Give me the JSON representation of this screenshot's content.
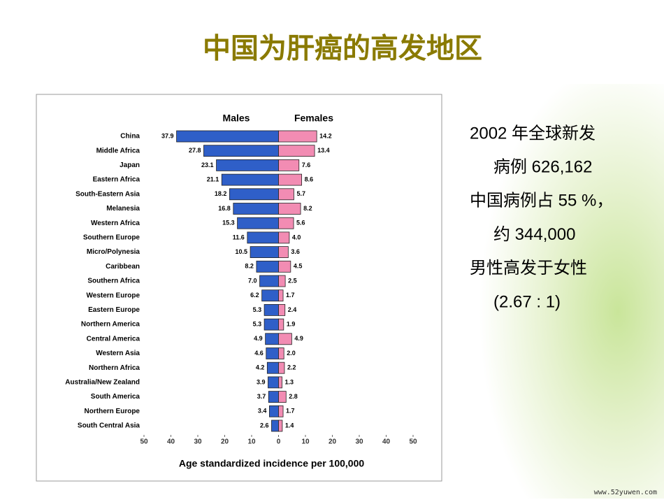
{
  "slide": {
    "title": "中国为肝癌的高发地区",
    "notes": [
      "2002 年全球新发",
      "病例   626,162",
      "中国病例占 55 %，",
      "约 344,000",
      "男性高发于女性",
      "(2.67 : 1)"
    ],
    "watermark": "www.52yuwen.com"
  },
  "chart_data": {
    "type": "pyramid",
    "xlabel": "Age standardized incidence per 100,000",
    "categories": [
      "China",
      "Middle Africa",
      "Japan",
      "Eastern Africa",
      "South-Eastern Asia",
      "Melanesia",
      "Western Africa",
      "Southern Europe",
      "Micro/Polynesia",
      "Caribbean",
      "Southern Africa",
      "Western Europe",
      "Eastern Europe",
      "Northern America",
      "Central America",
      "Western Asia",
      "Northern Africa",
      "Australia/New Zealand",
      "South America",
      "Northern Europe",
      "South Central Asia"
    ],
    "series": [
      {
        "name": "Males",
        "color": "#2f5fc8",
        "side": "left",
        "values": [
          37.9,
          27.8,
          23.1,
          21.1,
          18.2,
          16.8,
          15.3,
          11.6,
          10.5,
          8.2,
          7.0,
          6.2,
          5.3,
          5.3,
          4.9,
          4.6,
          4.2,
          3.9,
          3.7,
          3.4,
          2.6
        ]
      },
      {
        "name": "Females",
        "color": "#f28cb3",
        "side": "right",
        "values": [
          14.2,
          13.4,
          7.6,
          8.6,
          5.7,
          8.2,
          5.6,
          4.0,
          3.6,
          4.5,
          2.5,
          1.7,
          2.4,
          1.9,
          4.9,
          2.0,
          2.2,
          1.3,
          2.8,
          1.7,
          1.4
        ]
      }
    ],
    "value_labels": [
      [
        "37.9",
        "27.8",
        "23.1",
        "21.1",
        "18.2",
        "16.8",
        "15.3",
        "11.6",
        "10.5",
        "8.2",
        "7.0",
        "6.2",
        "5.3",
        "5.3",
        "4.9",
        "4.6",
        "4.2",
        "3.9",
        "3.7",
        "3.4",
        "2.6"
      ],
      [
        "14.2",
        "13.4",
        "7.6",
        "8.6",
        "5.7",
        "8.2",
        "5.6",
        "4.0",
        "3.6",
        "4.5",
        "2.5",
        "1.7",
        "2.4",
        "1.9",
        "4.9",
        "2.0",
        "2.2",
        "1.3",
        "2.8",
        "1.7",
        "1.4"
      ]
    ],
    "xlim": [
      -50,
      50
    ],
    "xticks": [
      {
        "value": -50,
        "label": "50"
      },
      {
        "value": -40,
        "label": "40"
      },
      {
        "value": -30,
        "label": "30"
      },
      {
        "value": -20,
        "label": "20"
      },
      {
        "value": -10,
        "label": "10"
      },
      0,
      10,
      20,
      30,
      40,
      50
    ]
  }
}
